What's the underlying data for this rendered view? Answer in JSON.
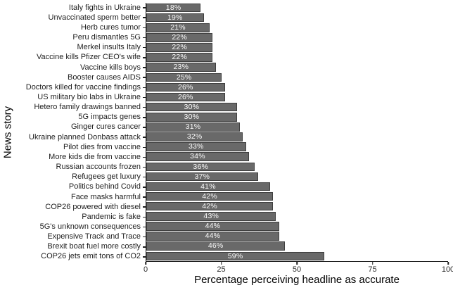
{
  "chart_data": {
    "type": "bar",
    "orientation": "horizontal",
    "xlabel": "Percentage perceiving headline as accurate",
    "ylabel": "News story",
    "xlim": [
      0,
      100
    ],
    "x_ticks": [
      0,
      25,
      50,
      75,
      100
    ],
    "x_tick_labels": [
      "0",
      "25",
      "50",
      "75",
      "100"
    ],
    "grid": "off",
    "legend": "none",
    "bar_color": "#696969",
    "bar_border_color": "#3f3f3f",
    "bar_label_color": "#fafafa",
    "axis_color": "#1f1f1f",
    "categories": [
      "Italy fights in Ukraine",
      "Unvaccinated sperm better",
      "Herb cures tumor",
      "Peru dismantles 5G",
      "Merkel insults Italy",
      "Vaccine kills Pfizer CEO's wife",
      "Vaccine kills boys",
      "Booster causes AIDS",
      "Doctors killed for vaccine findings",
      "US military bio labs in Ukraine",
      "Hetero family drawings banned",
      "5G impacts genes",
      "Ginger cures cancer",
      "Ukraine planned Donbass attack",
      "Pilot dies from vaccine",
      "More kids die from vaccine",
      "Russian accounts frozen",
      "Refugees get luxury",
      "Politics behind Covid",
      "Face masks harmful",
      "COP26 powered with diesel",
      "Pandemic is fake",
      "5G's unknown consequences",
      "Expensive Track and Trace",
      "Brexit boat fuel more costly",
      "COP26 jets emit tons of CO2"
    ],
    "values": [
      18,
      19,
      21,
      22,
      22,
      22,
      23,
      25,
      26,
      26,
      30,
      30,
      31,
      32,
      33,
      34,
      36,
      37,
      41,
      42,
      42,
      43,
      44,
      44,
      46,
      59
    ],
    "labels": [
      "18%",
      "19%",
      "21%",
      "22%",
      "22%",
      "22%",
      "23%",
      "25%",
      "26%",
      "26%",
      "30%",
      "30%",
      "31%",
      "32%",
      "33%",
      "34%",
      "36%",
      "37%",
      "41%",
      "42%",
      "42%",
      "43%",
      "44%",
      "44%",
      "46%",
      "59%"
    ]
  }
}
